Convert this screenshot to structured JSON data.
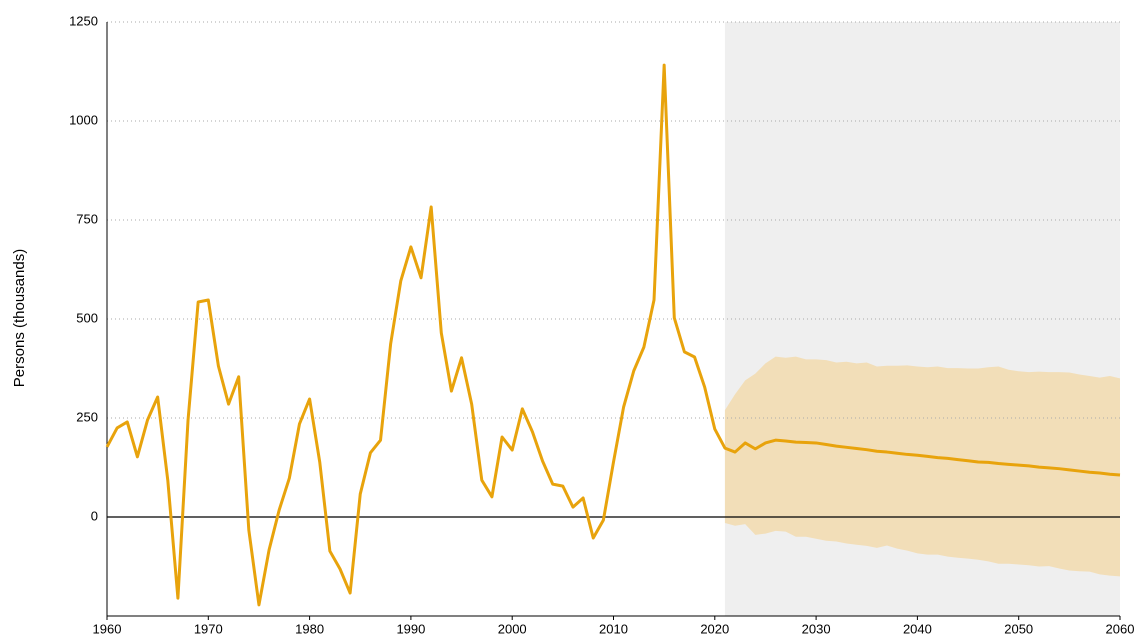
{
  "chart_data": {
    "type": "line",
    "y_label": "Persons (thousands)",
    "xlim": [
      1960,
      2060
    ],
    "xticks": [
      1960,
      1970,
      1980,
      1990,
      2000,
      2010,
      2020,
      2030,
      2040,
      2050,
      2060
    ],
    "ylim": [
      -250,
      1250
    ],
    "yticks": [
      0,
      250,
      500,
      750,
      1000,
      1250
    ],
    "grid": true,
    "projection_start": 2021,
    "projection_color": "#efefef",
    "series": [
      {
        "color": "#e8a30c",
        "x": [
          1960,
          1961,
          1962,
          1963,
          1964,
          1965,
          1966,
          1967,
          1968,
          1969,
          1970,
          1971,
          1972,
          1973,
          1974,
          1975,
          1976,
          1977,
          1978,
          1979,
          1980,
          1981,
          1982,
          1983,
          1984,
          1985,
          1986,
          1987,
          1988,
          1989,
          1990,
          1991,
          1992,
          1993,
          1994,
          1995,
          1996,
          1997,
          1998,
          1999,
          2000,
          2001,
          2002,
          2003,
          2004,
          2005,
          2006,
          2007,
          2008,
          2009,
          2010,
          2011,
          2012,
          2013,
          2014,
          2015,
          2016,
          2017,
          2018,
          2019,
          2020,
          2021,
          2022,
          2023,
          2024,
          2025,
          2026,
          2027,
          2028,
          2029,
          2030,
          2031,
          2032,
          2033,
          2034,
          2035,
          2036,
          2037,
          2038,
          2039,
          2040,
          2041,
          2042,
          2043,
          2044,
          2045,
          2046,
          2047,
          2048,
          2049,
          2050,
          2051,
          2052,
          2053,
          2054,
          2055,
          2056,
          2057,
          2058,
          2059,
          2060
        ],
        "values": [
          177,
          225,
          240,
          152,
          245,
          303,
          93,
          -205,
          245,
          543,
          548,
          381,
          285,
          354,
          -33,
          -222,
          -83,
          18,
          98,
          235,
          298,
          139,
          -86,
          -131,
          -192,
          58,
          162,
          194,
          437,
          596,
          682,
          604,
          783,
          465,
          318,
          402,
          285,
          93,
          51,
          202,
          169,
          273,
          215,
          141,
          83,
          78,
          25,
          48,
          -53,
          -8,
          139,
          278,
          369,
          429,
          548,
          1141,
          503,
          417,
          404,
          328,
          222,
          174,
          164,
          187,
          172,
          187,
          194,
          192,
          189,
          188,
          187,
          183,
          179,
          176,
          173,
          170,
          166,
          164,
          161,
          158,
          156,
          153,
          150,
          148,
          145,
          142,
          139,
          138,
          135,
          133,
          131,
          129,
          126,
          124,
          122,
          119,
          116,
          113,
          111,
          108,
          106
        ]
      }
    ],
    "band": {
      "color": "#f2deb8",
      "x": [
        2021,
        2022,
        2023,
        2024,
        2025,
        2026,
        2027,
        2028,
        2029,
        2030,
        2031,
        2032,
        2033,
        2034,
        2035,
        2036,
        2037,
        2038,
        2039,
        2040,
        2041,
        2042,
        2043,
        2044,
        2045,
        2046,
        2047,
        2048,
        2049,
        2050,
        2051,
        2052,
        2053,
        2054,
        2055,
        2056,
        2057,
        2058,
        2059,
        2060
      ],
      "upper": [
        270,
        310,
        345,
        362,
        388,
        405,
        402,
        405,
        398,
        398,
        396,
        390,
        392,
        388,
        390,
        380,
        382,
        382,
        383,
        380,
        378,
        380,
        376,
        376,
        375,
        375,
        378,
        380,
        372,
        368,
        366,
        367,
        366,
        366,
        365,
        360,
        356,
        352,
        356,
        350
      ],
      "lower": [
        -15,
        -22,
        -18,
        -45,
        -42,
        -35,
        -37,
        -50,
        -50,
        -55,
        -60,
        -62,
        -67,
        -70,
        -73,
        -78,
        -72,
        -80,
        -85,
        -92,
        -95,
        -95,
        -100,
        -103,
        -105,
        -108,
        -112,
        -118,
        -118,
        -120,
        -122,
        -125,
        -124,
        -130,
        -135,
        -137,
        -138,
        -145,
        -148,
        -150
      ]
    }
  }
}
